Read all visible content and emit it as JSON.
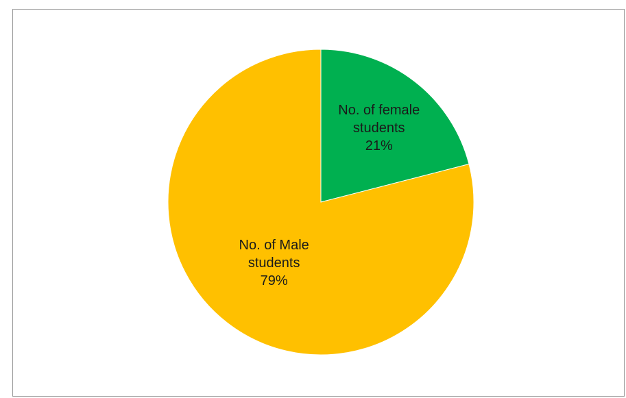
{
  "chart_data": {
    "type": "pie",
    "title": "",
    "slices": [
      {
        "name_lines": [
          "No. of female",
          "students"
        ],
        "value": 21,
        "value_label": "21%",
        "color": "#00b050"
      },
      {
        "name_lines": [
          "No. of Male",
          "students"
        ],
        "value": 79,
        "value_label": "79%",
        "color": "#ffc000"
      }
    ],
    "start_angle_deg": 0,
    "direction": "clockwise",
    "legend": "none",
    "data_labels": "inside"
  }
}
